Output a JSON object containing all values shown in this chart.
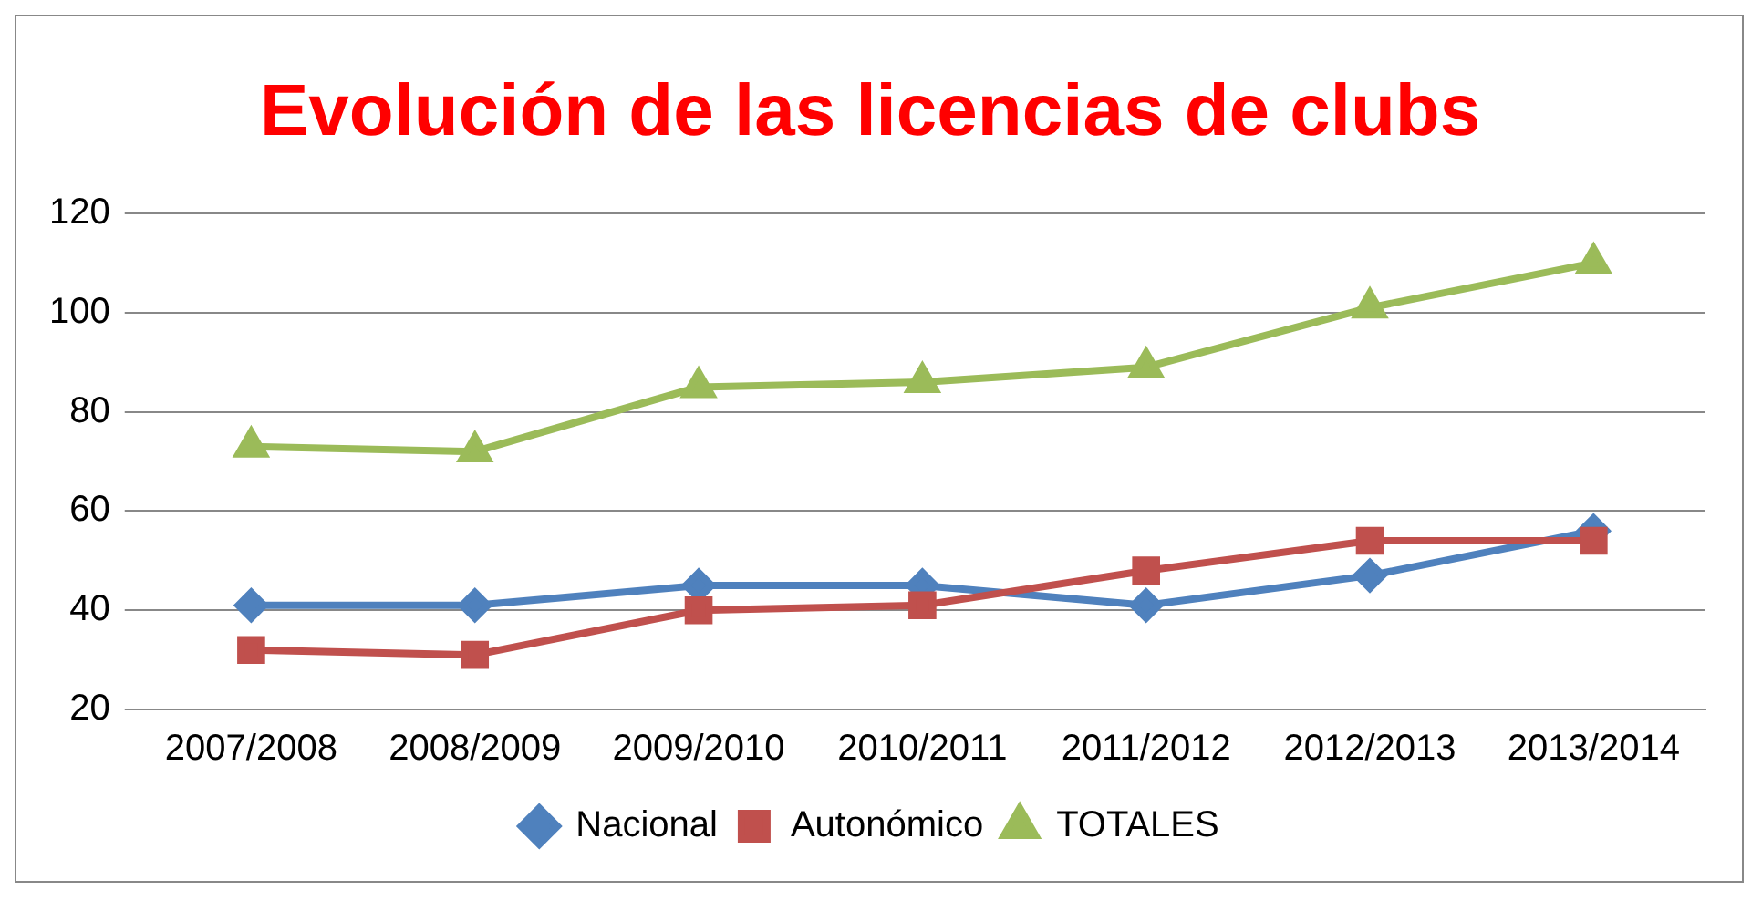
{
  "chart_data": {
    "type": "line",
    "title": "Evolución de las licencias de clubs",
    "categories": [
      "2007/2008",
      "2008/2009",
      "2009/2010",
      "2010/2011",
      "2011/2012",
      "2012/2013",
      "2013/2014"
    ],
    "series": [
      {
        "name": "Nacional",
        "color": "#4f81bd",
        "marker": "diamond",
        "values": [
          41,
          41,
          45,
          45,
          41,
          47,
          56
        ]
      },
      {
        "name": "Autonómico",
        "color": "#c0504d",
        "marker": "square",
        "values": [
          32,
          31,
          40,
          41,
          48,
          54,
          54
        ]
      },
      {
        "name": "TOTALES",
        "color": "#9bbb59",
        "marker": "triangle",
        "values": [
          73,
          72,
          85,
          86,
          89,
          101,
          110
        ]
      }
    ],
    "ylim": [
      20,
      120
    ],
    "yticks": [
      20,
      40,
      60,
      80,
      100,
      120
    ],
    "grid": "y",
    "legend": "bottom"
  }
}
